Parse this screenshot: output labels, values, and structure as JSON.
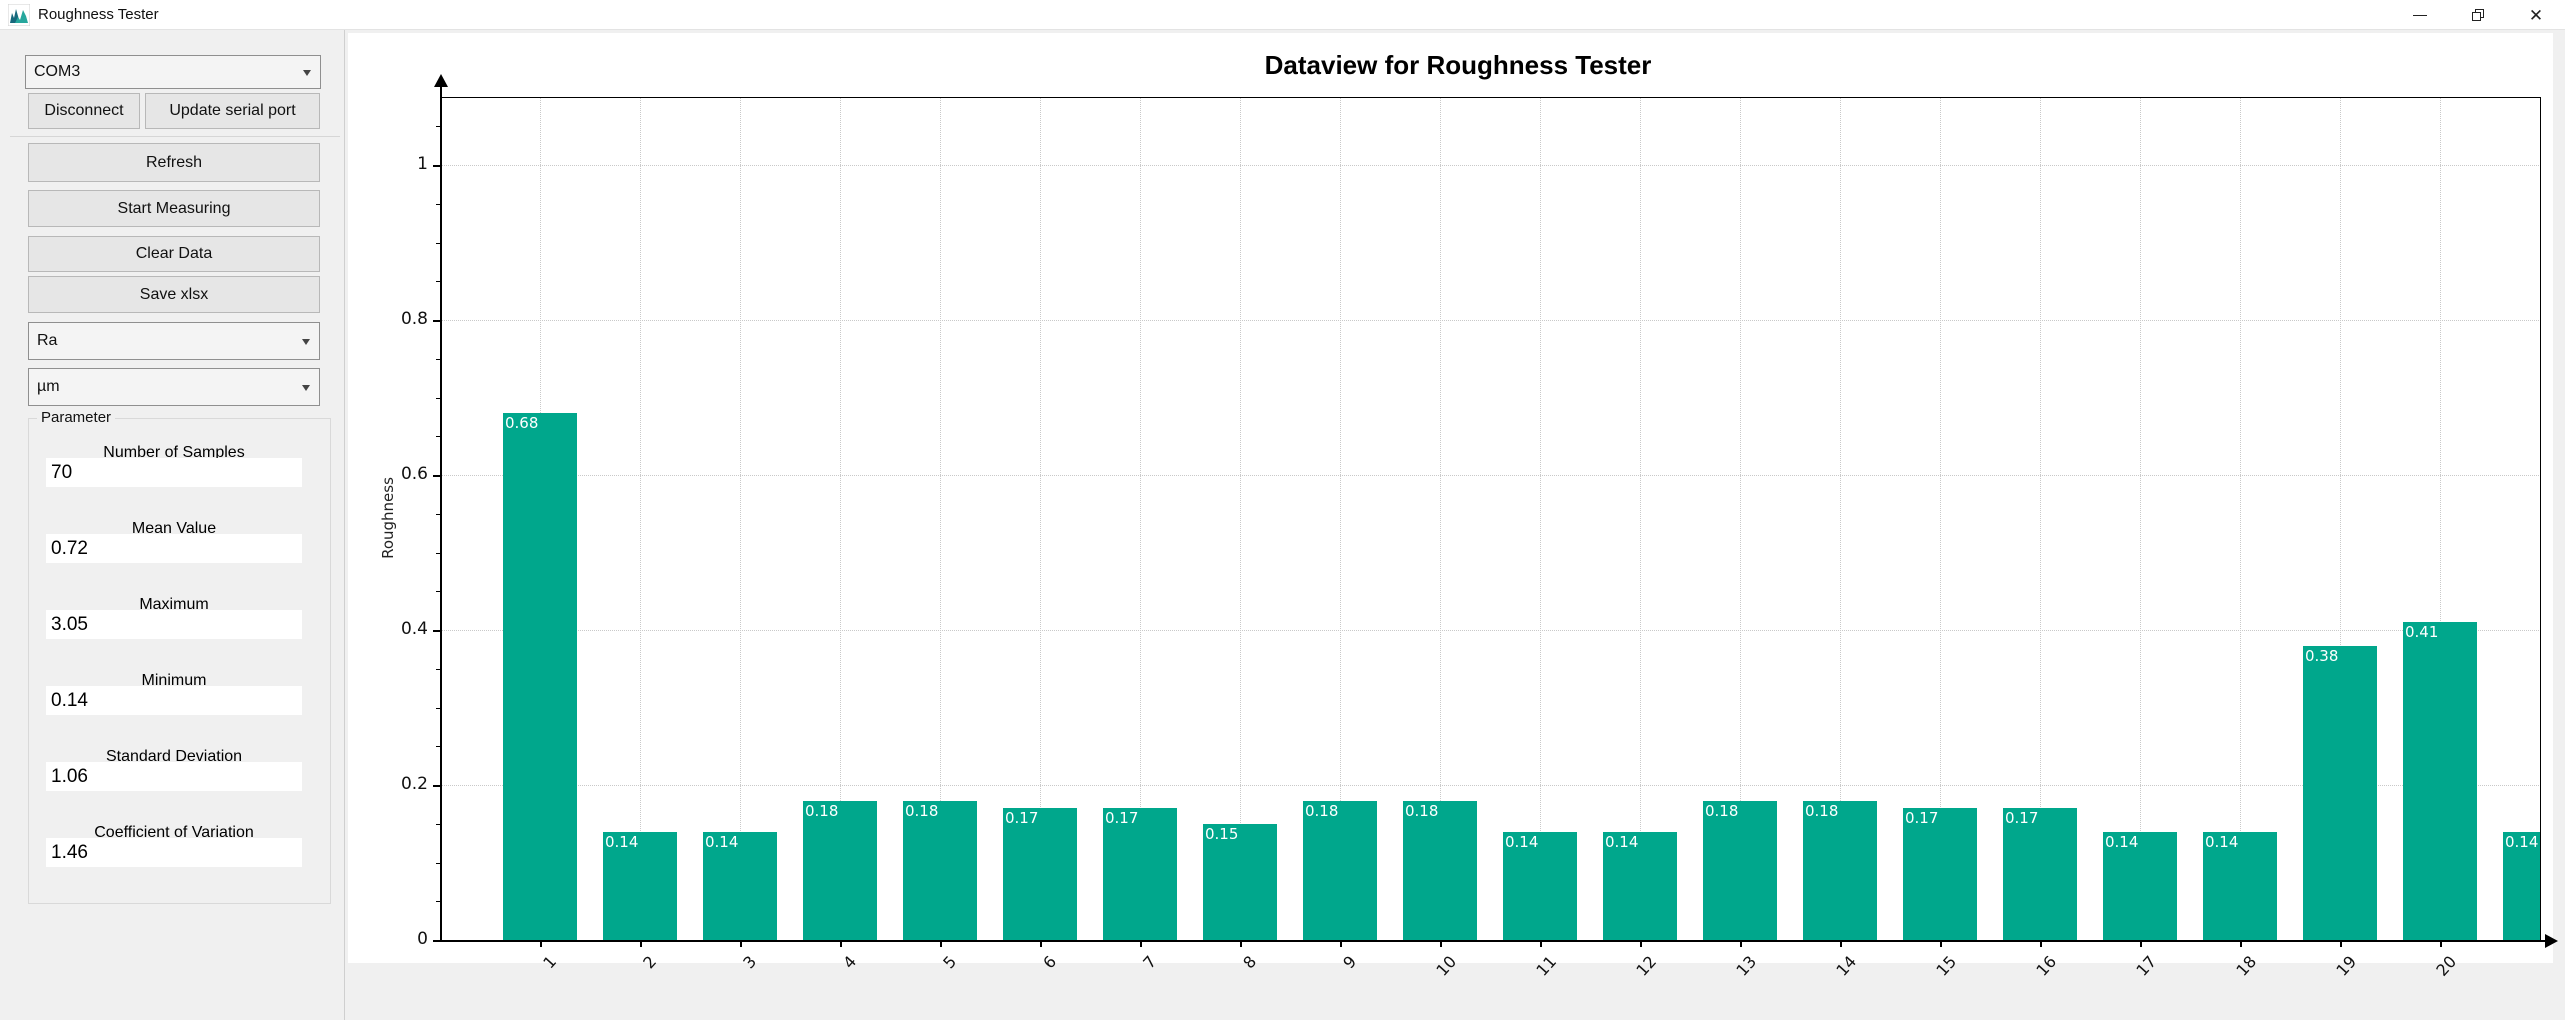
{
  "window": {
    "title": "Roughness Tester",
    "icon": "chart-icon",
    "controls": {
      "minimize": "minimize",
      "restore": "restore",
      "close": "close"
    }
  },
  "sidebar": {
    "port_select": {
      "value": "COM3"
    },
    "disconnect_label": "Disconnect",
    "update_serial_label": "Update serial port",
    "refresh_label": "Refresh",
    "start_measuring_label": "Start Measuring",
    "clear_data_label": "Clear Data",
    "save_xlsx_label": "Save xlsx",
    "measure_select": {
      "value": "Ra"
    },
    "unit_select": {
      "value": "µm"
    },
    "parameter_group": {
      "title": "Parameter",
      "fields": [
        {
          "label": "Number of Samples",
          "value": "70"
        },
        {
          "label": "Mean Value",
          "value": "0.72"
        },
        {
          "label": "Maximum",
          "value": "3.05"
        },
        {
          "label": "Minimum",
          "value": "0.14"
        },
        {
          "label": "Standard Deviation",
          "value": "1.06"
        },
        {
          "label": "Coefficient of Variation",
          "value": "1.46"
        }
      ]
    }
  },
  "chart_data": {
    "type": "bar",
    "title": "Dataview for Roughness Tester",
    "xlabel": "",
    "ylabel": "Roughness",
    "categories": [
      "1",
      "2",
      "3",
      "4",
      "5",
      "6",
      "7",
      "8",
      "9",
      "10",
      "11",
      "12",
      "13",
      "14",
      "15",
      "16",
      "17",
      "18",
      "19",
      "20",
      ""
    ],
    "values": [
      0.68,
      0.14,
      0.14,
      0.18,
      0.18,
      0.17,
      0.17,
      0.15,
      0.18,
      0.18,
      0.14,
      0.14,
      0.18,
      0.18,
      0.17,
      0.17,
      0.14,
      0.14,
      0.38,
      0.41,
      0.14
    ],
    "bar_labels": [
      "0.68",
      "0.14",
      "0.14",
      "0.18",
      "0.18",
      "0.17",
      "0.17",
      "0.15",
      "0.18",
      "0.18",
      "0.14",
      "0.14",
      "0.18",
      "0.18",
      "0.17",
      "0.17",
      "0.14",
      "0.14",
      "0.38",
      "0.41",
      "0.14"
    ],
    "ylim": [
      0,
      1.09
    ],
    "yticks": [
      0,
      0.2,
      0.4,
      0.6,
      0.8,
      1
    ],
    "minor_tick_step": 0.05,
    "grid": true,
    "legend": "none",
    "bar_color": "#00a78c",
    "value_label_color": "#ffffff",
    "last_bar_clipped": true
  },
  "colors": {
    "accent": "#00a78c",
    "window_bg": "#f0f0f0",
    "titlebar_bg": "#ffffff",
    "plot_bg": "#ffffff",
    "button_bg": "#e6e6e6"
  }
}
